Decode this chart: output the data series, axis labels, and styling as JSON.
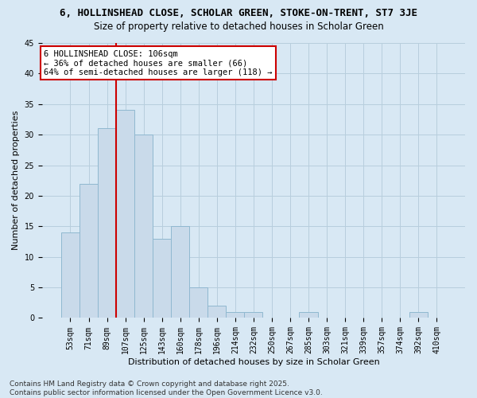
{
  "title1": "6, HOLLINSHEAD CLOSE, SCHOLAR GREEN, STOKE-ON-TRENT, ST7 3JE",
  "title2": "Size of property relative to detached houses in Scholar Green",
  "xlabel": "Distribution of detached houses by size in Scholar Green",
  "ylabel": "Number of detached properties",
  "categories": [
    "53sqm",
    "71sqm",
    "89sqm",
    "107sqm",
    "125sqm",
    "143sqm",
    "160sqm",
    "178sqm",
    "196sqm",
    "214sqm",
    "232sqm",
    "250sqm",
    "267sqm",
    "285sqm",
    "303sqm",
    "321sqm",
    "339sqm",
    "357sqm",
    "374sqm",
    "392sqm",
    "410sqm"
  ],
  "values": [
    14,
    22,
    31,
    34,
    30,
    13,
    15,
    5,
    2,
    1,
    1,
    0,
    0,
    1,
    0,
    0,
    0,
    0,
    0,
    1,
    0
  ],
  "bar_color": "#c9daea",
  "bar_edge_color": "#90b8d0",
  "grid_color": "#b8cedd",
  "background_color": "#d8e8f4",
  "annotation_text": "6 HOLLINSHEAD CLOSE: 106sqm\n← 36% of detached houses are smaller (66)\n64% of semi-detached houses are larger (118) →",
  "annotation_box_color": "#ffffff",
  "annotation_box_edge": "#cc0000",
  "vline_color": "#cc0000",
  "vline_index": 3,
  "ylim": [
    0,
    45
  ],
  "yticks": [
    0,
    5,
    10,
    15,
    20,
    25,
    30,
    35,
    40,
    45
  ],
  "footer": "Contains HM Land Registry data © Crown copyright and database right 2025.\nContains public sector information licensed under the Open Government Licence v3.0.",
  "title1_fontsize": 9,
  "title2_fontsize": 8.5,
  "xlabel_fontsize": 8,
  "ylabel_fontsize": 8,
  "tick_fontsize": 7,
  "annotation_fontsize": 7.5,
  "footer_fontsize": 6.5
}
